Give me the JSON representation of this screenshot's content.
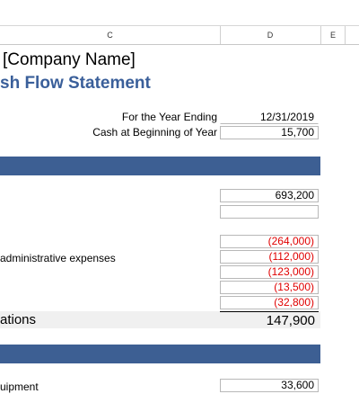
{
  "columns": [
    "C",
    "D",
    "E"
  ],
  "company": "[Company Name]",
  "title": "sh Flow Statement",
  "year_ending_label": "For the Year Ending",
  "year_ending_value": "12/31/2019",
  "cash_begin_label": "Cash at Beginning of Year",
  "cash_begin_value": "15,700",
  "operations": {
    "receipts_value": "693,200",
    "admin_label": "administrative expenses",
    "payments": [
      "(264,000)",
      "(112,000)",
      "(123,000)",
      "(13,500)",
      "(32,800)"
    ],
    "total_label": "ations",
    "total_value": "147,900"
  },
  "investing": {
    "equipment_label": "uipment",
    "equipment_value": "33,600"
  }
}
